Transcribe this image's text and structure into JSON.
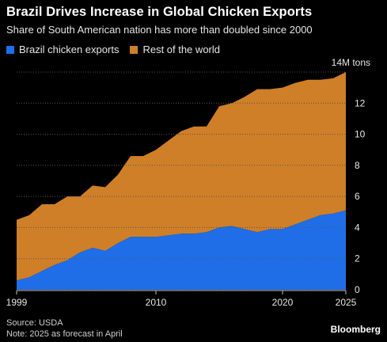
{
  "header": {
    "title": "Brazil Drives Increase in Global Chicken Exports",
    "subtitle": "Share of South American nation has more than doubled since 2000"
  },
  "legend": [
    {
      "label": "Brazil chicken exports",
      "color": "#1f6ee8"
    },
    {
      "label": "Rest of the world",
      "color": "#cf7f28"
    }
  ],
  "chart_data": {
    "type": "area",
    "stacked": true,
    "x": [
      1999,
      2000,
      2001,
      2002,
      2003,
      2004,
      2005,
      2006,
      2007,
      2008,
      2009,
      2010,
      2011,
      2012,
      2013,
      2014,
      2015,
      2016,
      2017,
      2018,
      2019,
      2020,
      2021,
      2022,
      2023,
      2024,
      2025
    ],
    "series": [
      {
        "name": "Brazil chicken exports",
        "color": "#1f6ee8",
        "values": [
          0.6,
          0.8,
          1.2,
          1.6,
          1.9,
          2.4,
          2.7,
          2.5,
          3.0,
          3.4,
          3.4,
          3.4,
          3.5,
          3.6,
          3.6,
          3.7,
          4.0,
          4.1,
          3.9,
          3.7,
          3.9,
          3.9,
          4.2,
          4.5,
          4.8,
          4.9,
          5.1
        ]
      },
      {
        "name": "Rest of the world",
        "color": "#cf7f28",
        "values": [
          3.9,
          4.0,
          4.3,
          3.9,
          4.1,
          3.6,
          4.0,
          4.1,
          4.4,
          5.2,
          5.2,
          5.6,
          6.1,
          6.6,
          6.9,
          6.8,
          7.8,
          7.9,
          8.5,
          9.2,
          9.0,
          9.1,
          9.1,
          9.0,
          8.7,
          8.7,
          8.9
        ]
      }
    ],
    "y_ticks": [
      0,
      2,
      4,
      6,
      8,
      10,
      12,
      14
    ],
    "y_tick_labels": [
      "0",
      "2",
      "4",
      "6",
      "8",
      "10",
      "12",
      "14M tons"
    ],
    "x_ticks": [
      1999,
      2010,
      2020,
      2025
    ],
    "x_tick_labels": [
      "1999",
      "2010",
      "2020",
      "2025"
    ],
    "ylim": [
      0,
      14
    ],
    "xlim": [
      1999,
      2025
    ],
    "grid": "horizontal-dotted"
  },
  "footer": {
    "source": "Source: USDA",
    "note": "Note: 2025 as forecast in April",
    "brand": "Bloomberg"
  }
}
